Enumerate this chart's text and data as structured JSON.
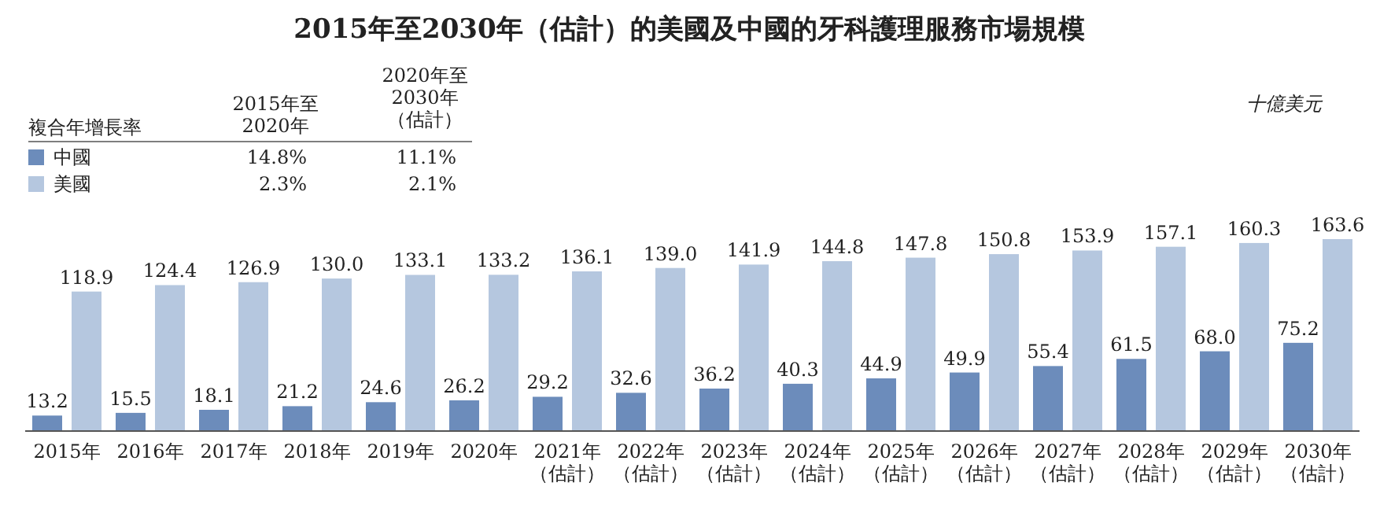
{
  "chart_data": {
    "type": "bar",
    "title": "2015年至2030年（估計）的美國及中國的牙科護理服務市場規模",
    "categories": [
      "2015年",
      "2016年",
      "2017年",
      "2018年",
      "2019年",
      "2020年",
      "2021年（估計）",
      "2022年（估計）",
      "2023年（估計）",
      "2024年（估計）",
      "2025年（估計）",
      "2026年（估計）",
      "2027年（估計）",
      "2028年（估計）",
      "2029年（估計）",
      "2030年（估計）"
    ],
    "series": [
      {
        "name": "中國",
        "color": "#6c8cbb",
        "values": [
          13.2,
          15.5,
          18.1,
          21.2,
          24.6,
          26.2,
          29.2,
          32.6,
          36.2,
          40.3,
          44.9,
          49.9,
          55.4,
          61.5,
          68.0,
          75.2
        ],
        "value_labels": [
          "13.2",
          "15.5",
          "18.1",
          "21.2",
          "24.6",
          "26.2",
          "29.2",
          "32.6",
          "36.2",
          "40.3",
          "44.9",
          "49.9",
          "55.4",
          "61.5",
          "68.0",
          "75.2"
        ]
      },
      {
        "name": "美國",
        "color": "#b5c7df",
        "values": [
          118.9,
          124.4,
          126.9,
          130.0,
          133.1,
          133.2,
          136.1,
          139.0,
          141.9,
          144.8,
          147.8,
          150.8,
          153.9,
          157.1,
          160.3,
          163.6
        ],
        "value_labels": [
          "118.9",
          "124.4",
          "126.9",
          "130.0",
          "133.1",
          "133.2",
          "136.1",
          "139.0",
          "141.9",
          "144.8",
          "147.8",
          "150.8",
          "153.9",
          "157.1",
          "160.3",
          "163.6"
        ]
      }
    ],
    "legend": "top left",
    "annotations": [
      "十億美元",
      "複合年增長率",
      "2015年至2020年",
      "2020年至2030年（估計）",
      "14.8%",
      "11.1%",
      "2.3%",
      "2.1%"
    ]
  }
}
